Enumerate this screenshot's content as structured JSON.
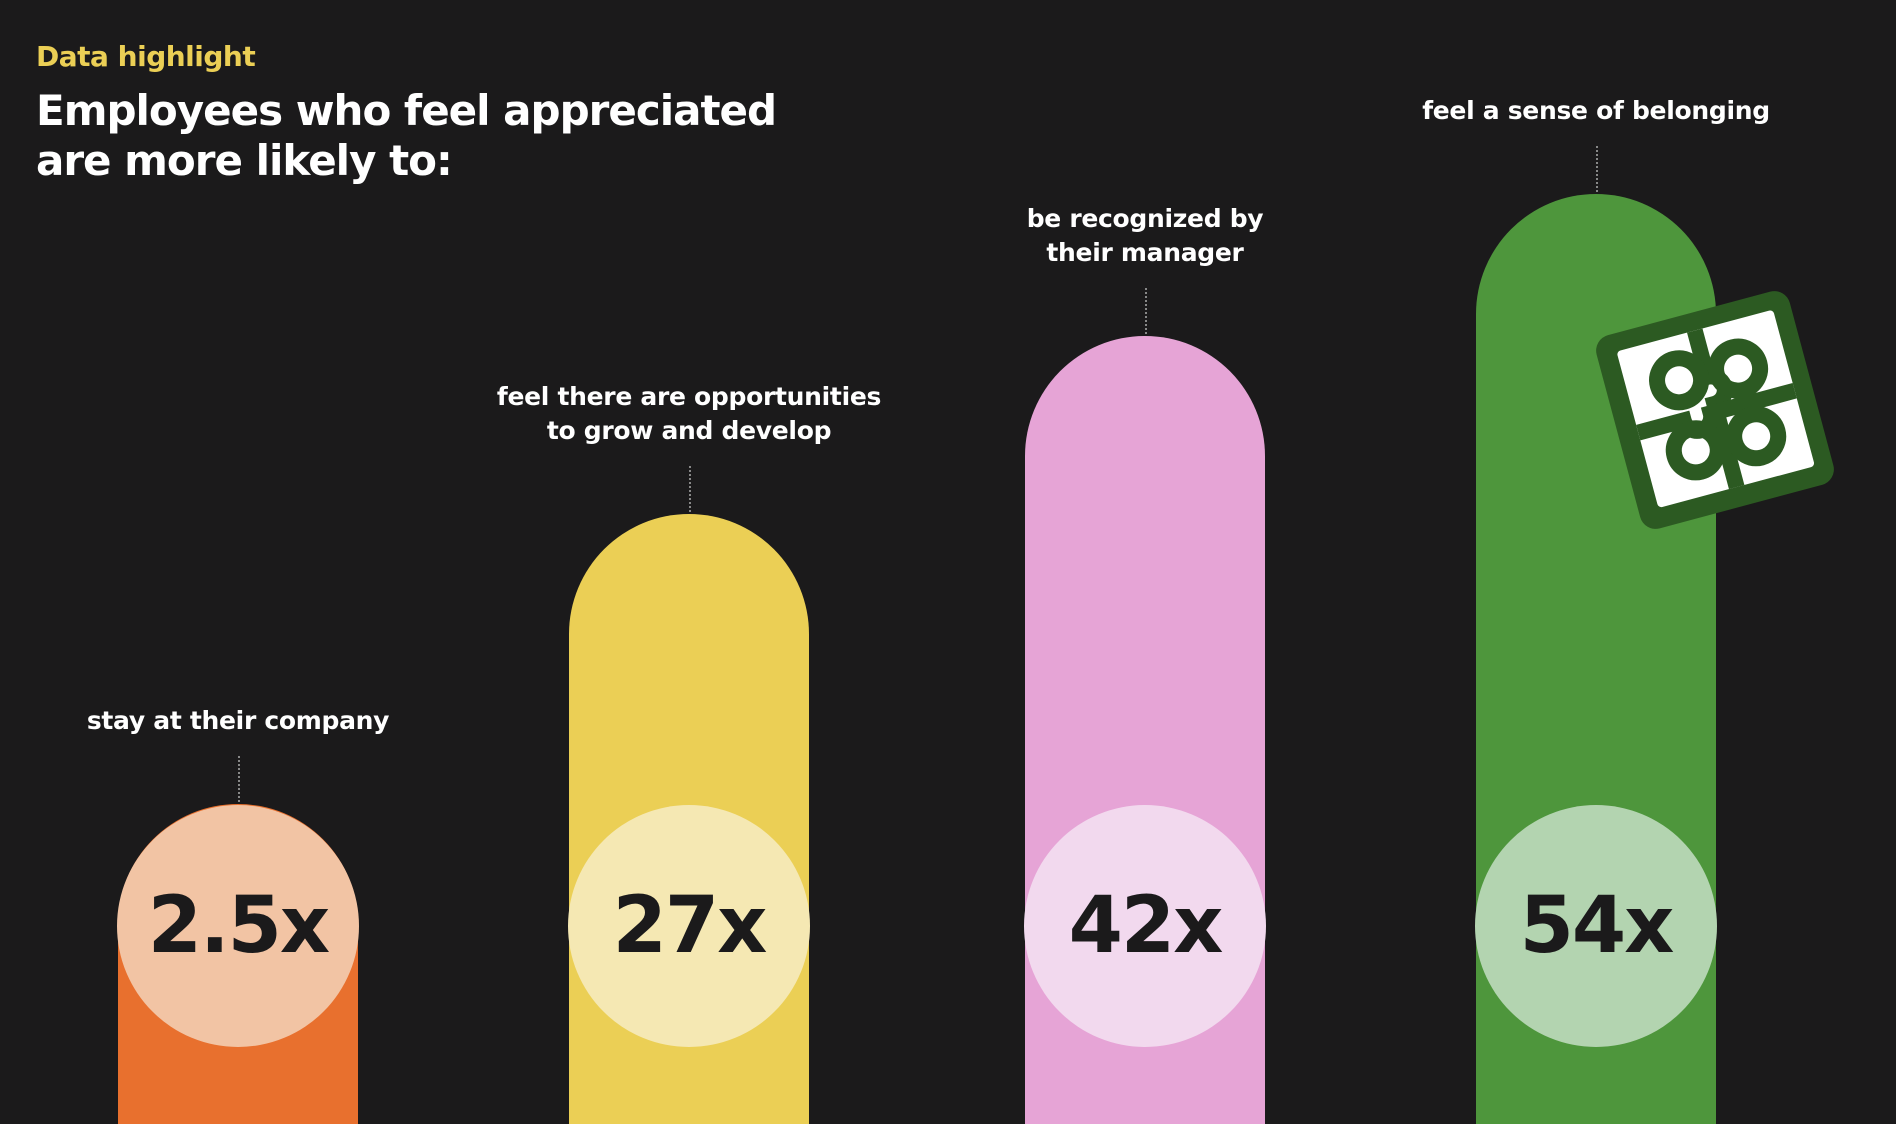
{
  "header": {
    "eyebrow": "Data highlight",
    "title": [
      "Employees who feel appreciated",
      "are more likely to:"
    ]
  },
  "chart_data": {
    "type": "pill-bar",
    "categories": [
      [
        "stay at their company"
      ],
      [
        "feel there are opportunities",
        "to grow and develop"
      ],
      [
        "be recognized by",
        "their manager"
      ],
      [
        "feel a sense of belonging"
      ]
    ],
    "values": [
      2.5,
      27,
      42,
      54
    ],
    "value_labels": [
      "2.5x",
      "27x",
      "42x",
      "54x"
    ],
    "colors": [
      "#e8702e",
      "#ebcf55",
      "#e6a4d6",
      "#4e963c"
    ],
    "circle_colors": [
      "#f2c4a4",
      "#f5e8b3",
      "#f2d9ee",
      "#b3d4b0"
    ]
  }
}
